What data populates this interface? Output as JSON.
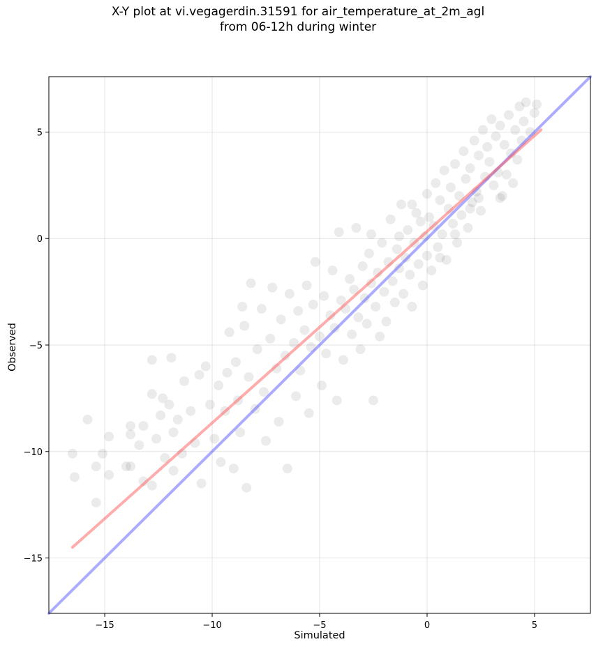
{
  "chart_data": {
    "type": "scatter",
    "title_line1": "X-Y plot at vi.vegagerdin.31591 for air_temperature_at_2m_agl",
    "title_line2": "from 06-12h during winter",
    "xlabel": "Simulated",
    "ylabel": "Observed",
    "xlim": [
      -17.6,
      7.6
    ],
    "ylim": [
      -17.6,
      7.6
    ],
    "xticks": [
      -15,
      -10,
      -5,
      0,
      5
    ],
    "yticks": [
      -15,
      -10,
      -5,
      0,
      5
    ],
    "xtick_labels": [
      "−15",
      "−10",
      "−5",
      "0",
      "5"
    ],
    "ytick_labels": [
      "−15",
      "−10",
      "−5",
      "0",
      "5"
    ],
    "grid": true,
    "point_color": "#000000",
    "point_opacity": 0.08,
    "series": [
      {
        "points": [
          [
            -16.5,
            -10.1
          ],
          [
            -16.4,
            -11.2
          ],
          [
            -15.8,
            -8.5
          ],
          [
            -15.4,
            -10.7
          ],
          [
            -15.4,
            -12.4
          ],
          [
            -15.1,
            -10.1
          ],
          [
            -14.8,
            -9.3
          ],
          [
            -14.8,
            -11.1
          ],
          [
            -14.0,
            -10.7
          ],
          [
            -13.8,
            -10.7
          ],
          [
            -13.8,
            -9.2
          ],
          [
            -13.8,
            -8.8
          ],
          [
            -13.4,
            -9.7
          ],
          [
            -13.2,
            -8.8
          ],
          [
            -13.2,
            -11.4
          ],
          [
            -12.8,
            -5.7
          ],
          [
            -12.8,
            -7.3
          ],
          [
            -12.8,
            -11.6
          ],
          [
            -12.6,
            -9.4
          ],
          [
            -12.4,
            -8.3
          ],
          [
            -12.3,
            -7.5
          ],
          [
            -12.2,
            -10.3
          ],
          [
            -12.0,
            -7.8
          ],
          [
            -11.9,
            -5.6
          ],
          [
            -11.8,
            -9.1
          ],
          [
            -11.8,
            -10.9
          ],
          [
            -11.6,
            -8.5
          ],
          [
            -11.4,
            -10.1
          ],
          [
            -11.3,
            -6.7
          ],
          [
            -11.0,
            -8.1
          ],
          [
            -10.8,
            -9.6
          ],
          [
            -10.6,
            -6.4
          ],
          [
            -10.5,
            -11.5
          ],
          [
            -10.3,
            -6.0
          ],
          [
            -10.1,
            -7.8
          ],
          [
            -9.9,
            -9.4
          ],
          [
            -9.7,
            -6.9
          ],
          [
            -9.6,
            -10.5
          ],
          [
            -9.4,
            -8.1
          ],
          [
            -9.3,
            -6.3
          ],
          [
            -9.2,
            -4.4
          ],
          [
            -9.0,
            -10.8
          ],
          [
            -8.9,
            -5.8
          ],
          [
            -8.8,
            -7.6
          ],
          [
            -8.7,
            -9.1
          ],
          [
            -8.6,
            -3.2
          ],
          [
            -8.5,
            -4.1
          ],
          [
            -8.4,
            -11.7
          ],
          [
            -8.3,
            -6.5
          ],
          [
            -8.2,
            -2.1
          ],
          [
            -8.0,
            -8.0
          ],
          [
            -7.9,
            -5.2
          ],
          [
            -7.7,
            -3.3
          ],
          [
            -7.6,
            -7.2
          ],
          [
            -7.5,
            -9.5
          ],
          [
            -7.3,
            -4.7
          ],
          [
            -7.2,
            -2.3
          ],
          [
            -7.0,
            -6.1
          ],
          [
            -6.9,
            -8.6
          ],
          [
            -6.8,
            -3.8
          ],
          [
            -6.6,
            -5.5
          ],
          [
            -6.5,
            -10.8
          ],
          [
            -6.4,
            -2.6
          ],
          [
            -6.2,
            -4.9
          ],
          [
            -6.1,
            -7.4
          ],
          [
            -6.0,
            -3.4
          ],
          [
            -5.9,
            -6.2
          ],
          [
            -5.7,
            -4.3
          ],
          [
            -5.6,
            -2.2
          ],
          [
            -5.5,
            -8.2
          ],
          [
            -5.4,
            -5.1
          ],
          [
            -5.3,
            -3.1
          ],
          [
            -5.2,
            -1.1
          ],
          [
            -5.0,
            -4.6
          ],
          [
            -4.9,
            -6.9
          ],
          [
            -4.8,
            -2.7
          ],
          [
            -4.7,
            -5.4
          ],
          [
            -4.5,
            -3.6
          ],
          [
            -4.4,
            -1.5
          ],
          [
            -4.3,
            -4.2
          ],
          [
            -4.2,
            -7.6
          ],
          [
            -4.1,
            0.3
          ],
          [
            -4.0,
            -2.9
          ],
          [
            -3.9,
            -5.7
          ],
          [
            -3.8,
            -3.3
          ],
          [
            -3.6,
            -1.9
          ],
          [
            -3.5,
            -4.5
          ],
          [
            -3.4,
            -2.4
          ],
          [
            -3.3,
            0.5
          ],
          [
            -3.2,
            -3.7
          ],
          [
            -3.1,
            -5.2
          ],
          [
            -3.0,
            -1.3
          ],
          [
            -2.9,
            -2.8
          ],
          [
            -2.8,
            -4.0
          ],
          [
            -2.7,
            -0.7
          ],
          [
            -2.6,
            -2.1
          ],
          [
            -2.5,
            -7.6
          ],
          [
            -2.4,
            -3.2
          ],
          [
            -2.3,
            -1.6
          ],
          [
            -2.2,
            -4.6
          ],
          [
            -2.1,
            -0.2
          ],
          [
            -2.0,
            -2.5
          ],
          [
            -1.9,
            -3.9
          ],
          [
            -1.8,
            -1.1
          ],
          [
            -1.7,
            0.9
          ],
          [
            -1.6,
            -2.0
          ],
          [
            -1.5,
            -3.0
          ],
          [
            -1.4,
            -0.5
          ],
          [
            -1.3,
            -1.4
          ],
          [
            -1.2,
            1.6
          ],
          [
            -1.1,
            -2.6
          ],
          [
            -1.0,
            -0.9
          ],
          [
            -0.9,
            0.4
          ],
          [
            -0.8,
            -1.7
          ],
          [
            -0.7,
            -3.2
          ],
          [
            -0.6,
            -0.2
          ],
          [
            -0.5,
            1.2
          ],
          [
            -0.4,
            -1.2
          ],
          [
            -0.3,
            0.8
          ],
          [
            -0.2,
            -2.2
          ],
          [
            -0.1,
            0.1
          ],
          [
            0.0,
            2.1
          ],
          [
            0.0,
            -0.8
          ],
          [
            0.1,
            1.0
          ],
          [
            0.2,
            -1.5
          ],
          [
            0.3,
            0.6
          ],
          [
            0.4,
            2.6
          ],
          [
            0.5,
            -0.4
          ],
          [
            0.6,
            1.8
          ],
          [
            0.7,
            0.2
          ],
          [
            0.8,
            3.2
          ],
          [
            0.9,
            -1.0
          ],
          [
            1.0,
            1.4
          ],
          [
            1.1,
            2.4
          ],
          [
            1.2,
            0.7
          ],
          [
            1.3,
            3.5
          ],
          [
            1.4,
            -0.2
          ],
          [
            1.5,
            2.0
          ],
          [
            1.6,
            1.1
          ],
          [
            1.7,
            4.1
          ],
          [
            1.8,
            2.8
          ],
          [
            1.9,
            0.5
          ],
          [
            2.0,
            3.3
          ],
          [
            2.1,
            1.7
          ],
          [
            2.2,
            4.6
          ],
          [
            2.3,
            2.2
          ],
          [
            2.4,
            3.9
          ],
          [
            2.5,
            1.3
          ],
          [
            2.6,
            5.1
          ],
          [
            2.7,
            2.9
          ],
          [
            2.8,
            4.3
          ],
          [
            2.9,
            3.6
          ],
          [
            3.0,
            5.6
          ],
          [
            3.1,
            2.5
          ],
          [
            3.2,
            4.8
          ],
          [
            3.3,
            3.1
          ],
          [
            3.4,
            5.3
          ],
          [
            3.5,
            2.0
          ],
          [
            3.6,
            4.4
          ],
          [
            3.7,
            3.0
          ],
          [
            3.8,
            5.8
          ],
          [
            3.9,
            4.0
          ],
          [
            4.0,
            2.6
          ],
          [
            4.1,
            5.1
          ],
          [
            4.2,
            3.7
          ],
          [
            4.3,
            6.2
          ],
          [
            4.4,
            4.6
          ],
          [
            4.5,
            5.5
          ],
          [
            4.6,
            6.4
          ],
          [
            4.8,
            5.0
          ],
          [
            5.0,
            5.9
          ],
          [
            5.1,
            6.3
          ],
          [
            -2.6,
            0.2
          ],
          [
            -1.3,
            0.1
          ],
          [
            0.6,
            -0.9
          ],
          [
            -0.7,
            1.6
          ],
          [
            1.3,
            0.2
          ],
          [
            2.0,
            1.4
          ],
          [
            2.4,
            1.9
          ],
          [
            3.4,
            1.9
          ]
        ]
      }
    ],
    "fit_line": {
      "color": "#ff5a5a",
      "opacity": 0.5,
      "x": [
        -16.5,
        5.3
      ],
      "y": [
        -14.5,
        5.1
      ]
    },
    "identity_line": {
      "color": "#5a5aff",
      "opacity": 0.5,
      "x": [
        -17.6,
        7.6
      ],
      "y": [
        -17.6,
        7.6
      ]
    }
  }
}
